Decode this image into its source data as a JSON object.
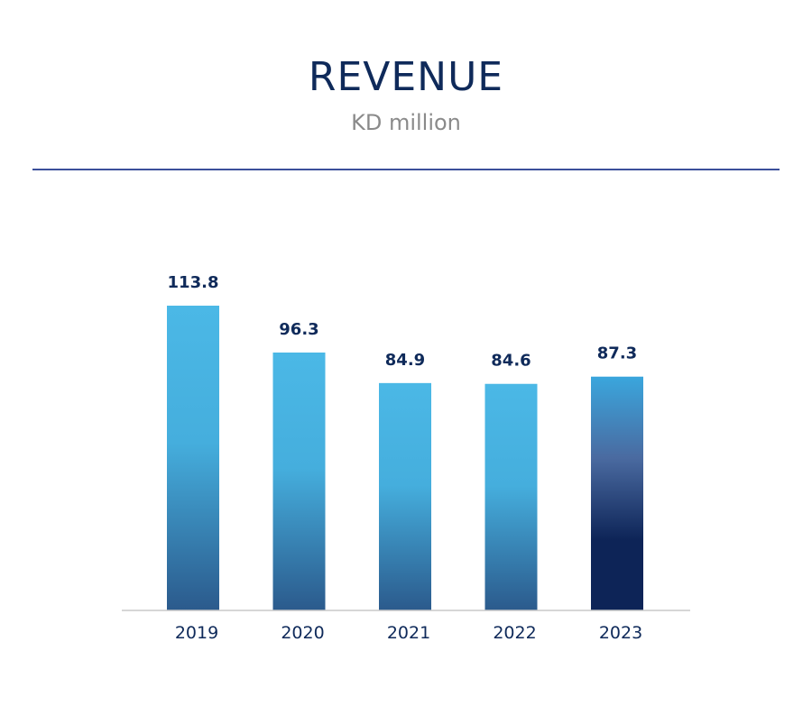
{
  "chart_data": {
    "type": "bar",
    "title": "REVENUE",
    "subtitle": "KD million",
    "categories": [
      "2019",
      "2020",
      "2021",
      "2022",
      "2023"
    ],
    "values": [
      113.8,
      96.3,
      84.9,
      84.6,
      87.3
    ],
    "data_labels": [
      "113.8",
      "96.3",
      "84.9",
      "84.6",
      "87.3"
    ],
    "ylim": [
      0,
      120
    ],
    "grid": false,
    "legend": "none",
    "xlabel": "",
    "ylabel": "",
    "colors": {
      "bar_top": "#4bb8e6",
      "bar_bottom": "#2b5a8c",
      "highlight_top": "#3aa6dd",
      "highlight_bottom": "#0d2457",
      "text": "#0f2a5a",
      "subtitle": "#8a8a8a",
      "divider": "#3b4f9a",
      "axis": "#c8c8c8"
    },
    "highlight_index": 4
  }
}
